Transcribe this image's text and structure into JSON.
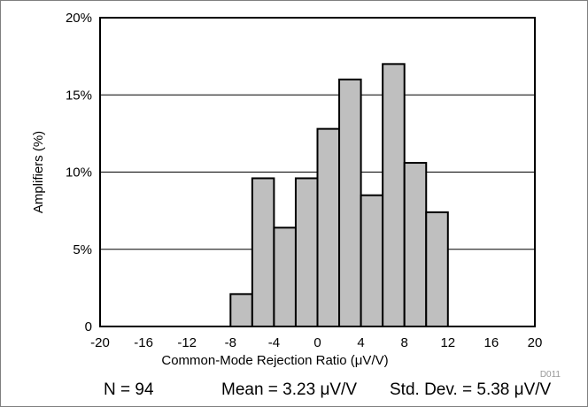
{
  "chart_data": {
    "type": "bar",
    "subtype": "histogram",
    "xlabel": "Common-Mode Rejection Ratio (μV/V)",
    "ylabel": "Amplifiers (%)",
    "xlim": [
      -20,
      20
    ],
    "ylim": [
      0,
      20
    ],
    "x_ticks": [
      "-20",
      "-16",
      "-12",
      "-8",
      "-4",
      "0",
      "4",
      "8",
      "12",
      "16",
      "20"
    ],
    "y_ticks": [
      "0",
      "5%",
      "10%",
      "15%",
      "20%"
    ],
    "grid": "horizontal",
    "bins": [
      {
        "start": -8,
        "end": -6,
        "value": 2.1
      },
      {
        "start": -6,
        "end": -4,
        "value": 9.6
      },
      {
        "start": -4,
        "end": -2,
        "value": 6.4
      },
      {
        "start": -2,
        "end": 0,
        "value": 9.6
      },
      {
        "start": 0,
        "end": 2,
        "value": 12.8
      },
      {
        "start": 2,
        "end": 4,
        "value": 16.0
      },
      {
        "start": 4,
        "end": 6,
        "value": 8.5
      },
      {
        "start": 6,
        "end": 8,
        "value": 17.0
      },
      {
        "start": 8,
        "end": 10,
        "value": 10.6
      },
      {
        "start": 10,
        "end": 12,
        "value": 7.4
      }
    ],
    "bar_color": "#bfbfbf",
    "code_label": "D011"
  },
  "stats": {
    "n": "N = 94",
    "mean": "Mean = 3.23 μV/V",
    "std": "Std. Dev. = 5.38 μV/V"
  }
}
